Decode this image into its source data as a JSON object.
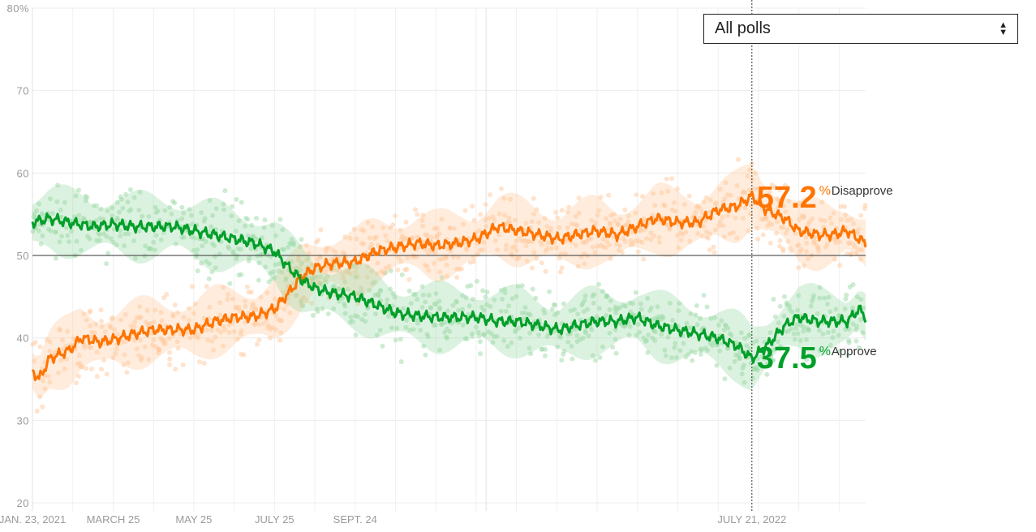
{
  "filter": {
    "selected": "All polls",
    "up_icon": "triangle-up-icon",
    "down_icon": "triangle-down-icon"
  },
  "chart_data": {
    "type": "line",
    "y_axis": {
      "range": [
        20,
        80
      ],
      "ticks": [
        20,
        30,
        40,
        50,
        60,
        70,
        80
      ],
      "top_tick_label": "80%"
    },
    "x_axis": {
      "range": [
        "2021-01-23",
        "2022-10-15"
      ],
      "tick_labels": [
        {
          "date": "2021-01-23",
          "label": "JAN. 23, 2021"
        },
        {
          "date": "2021-03-25",
          "label": "MARCH 25"
        },
        {
          "date": "2021-05-25",
          "label": "MAY 25"
        },
        {
          "date": "2021-07-25",
          "label": "JULY 25"
        },
        {
          "date": "2021-09-24",
          "label": "SEPT. 24"
        },
        {
          "date": "2022-07-21",
          "label": "JULY 21, 2022"
        }
      ]
    },
    "reference_line": 50,
    "hover_date": "2022-07-21",
    "colors": {
      "disapprove": "#ff7400",
      "approve": "#009f29",
      "disapprove_points": "#ffc89b",
      "approve_points": "#9bd9a6"
    },
    "series": [
      {
        "name": "Disapprove",
        "current_value": "57.2",
        "percent_sign": "%",
        "dates": [
          "2021-01-23",
          "2021-01-28",
          "2021-02-05",
          "2021-02-20",
          "2021-03-01",
          "2021-03-15",
          "2021-03-25",
          "2021-04-10",
          "2021-04-25",
          "2021-05-10",
          "2021-05-25",
          "2021-06-10",
          "2021-06-25",
          "2021-07-10",
          "2021-07-25",
          "2021-08-05",
          "2021-08-15",
          "2021-08-25",
          "2021-09-05",
          "2021-09-24",
          "2021-10-10",
          "2021-10-25",
          "2021-11-10",
          "2021-11-25",
          "2021-12-10",
          "2021-12-25",
          "2022-01-10",
          "2022-01-25",
          "2022-02-10",
          "2022-02-25",
          "2022-03-10",
          "2022-03-25",
          "2022-04-10",
          "2022-04-25",
          "2022-05-10",
          "2022-05-25",
          "2022-06-10",
          "2022-06-25",
          "2022-07-10",
          "2022-07-21",
          "2022-08-01",
          "2022-08-15",
          "2022-08-25",
          "2022-09-10",
          "2022-09-20",
          "2022-10-01",
          "2022-10-10",
          "2022-10-15"
        ],
        "values": [
          36.0,
          35.0,
          37.5,
          38.5,
          40.0,
          39.5,
          39.8,
          40.5,
          41.0,
          41.0,
          41.0,
          42.0,
          42.5,
          42.6,
          43.5,
          45.5,
          47.5,
          48.5,
          49.0,
          49.2,
          50.5,
          51.0,
          51.5,
          51.2,
          51.5,
          52.0,
          53.5,
          53.0,
          52.5,
          52.0,
          52.5,
          53.0,
          52.5,
          53.5,
          54.5,
          54.0,
          54.0,
          55.5,
          56.0,
          57.2,
          55.5,
          54.5,
          53.0,
          52.5,
          52.5,
          53.0,
          52.0,
          51.5
        ]
      },
      {
        "name": "Approve",
        "current_value": "37.5",
        "percent_sign": "%",
        "dates": [
          "2021-01-23",
          "2021-02-05",
          "2021-02-20",
          "2021-03-10",
          "2021-03-25",
          "2021-04-10",
          "2021-04-25",
          "2021-05-10",
          "2021-05-25",
          "2021-06-10",
          "2021-06-25",
          "2021-07-10",
          "2021-07-25",
          "2021-08-05",
          "2021-08-15",
          "2021-08-25",
          "2021-09-05",
          "2021-09-24",
          "2021-10-10",
          "2021-10-25",
          "2021-11-10",
          "2021-11-25",
          "2021-12-10",
          "2021-12-25",
          "2022-01-10",
          "2022-01-25",
          "2022-02-10",
          "2022-02-25",
          "2022-03-10",
          "2022-03-25",
          "2022-04-10",
          "2022-04-25",
          "2022-05-10",
          "2022-05-25",
          "2022-06-10",
          "2022-06-25",
          "2022-07-10",
          "2022-07-21",
          "2022-08-01",
          "2022-08-15",
          "2022-08-25",
          "2022-09-10",
          "2022-09-20",
          "2022-10-01",
          "2022-10-10",
          "2022-10-15"
        ],
        "values": [
          54.0,
          54.5,
          54.0,
          53.5,
          53.8,
          53.5,
          53.5,
          53.5,
          53.0,
          52.5,
          52.0,
          51.5,
          50.5,
          48.5,
          47.0,
          46.0,
          45.5,
          45.0,
          44.0,
          43.0,
          42.7,
          42.5,
          42.5,
          42.5,
          42.0,
          42.0,
          41.5,
          41.0,
          41.5,
          42.0,
          42.0,
          42.5,
          41.5,
          41.0,
          40.5,
          40.0,
          39.0,
          37.5,
          39.0,
          41.5,
          42.5,
          42.0,
          42.0,
          42.0,
          43.5,
          42.5
        ]
      }
    ]
  }
}
